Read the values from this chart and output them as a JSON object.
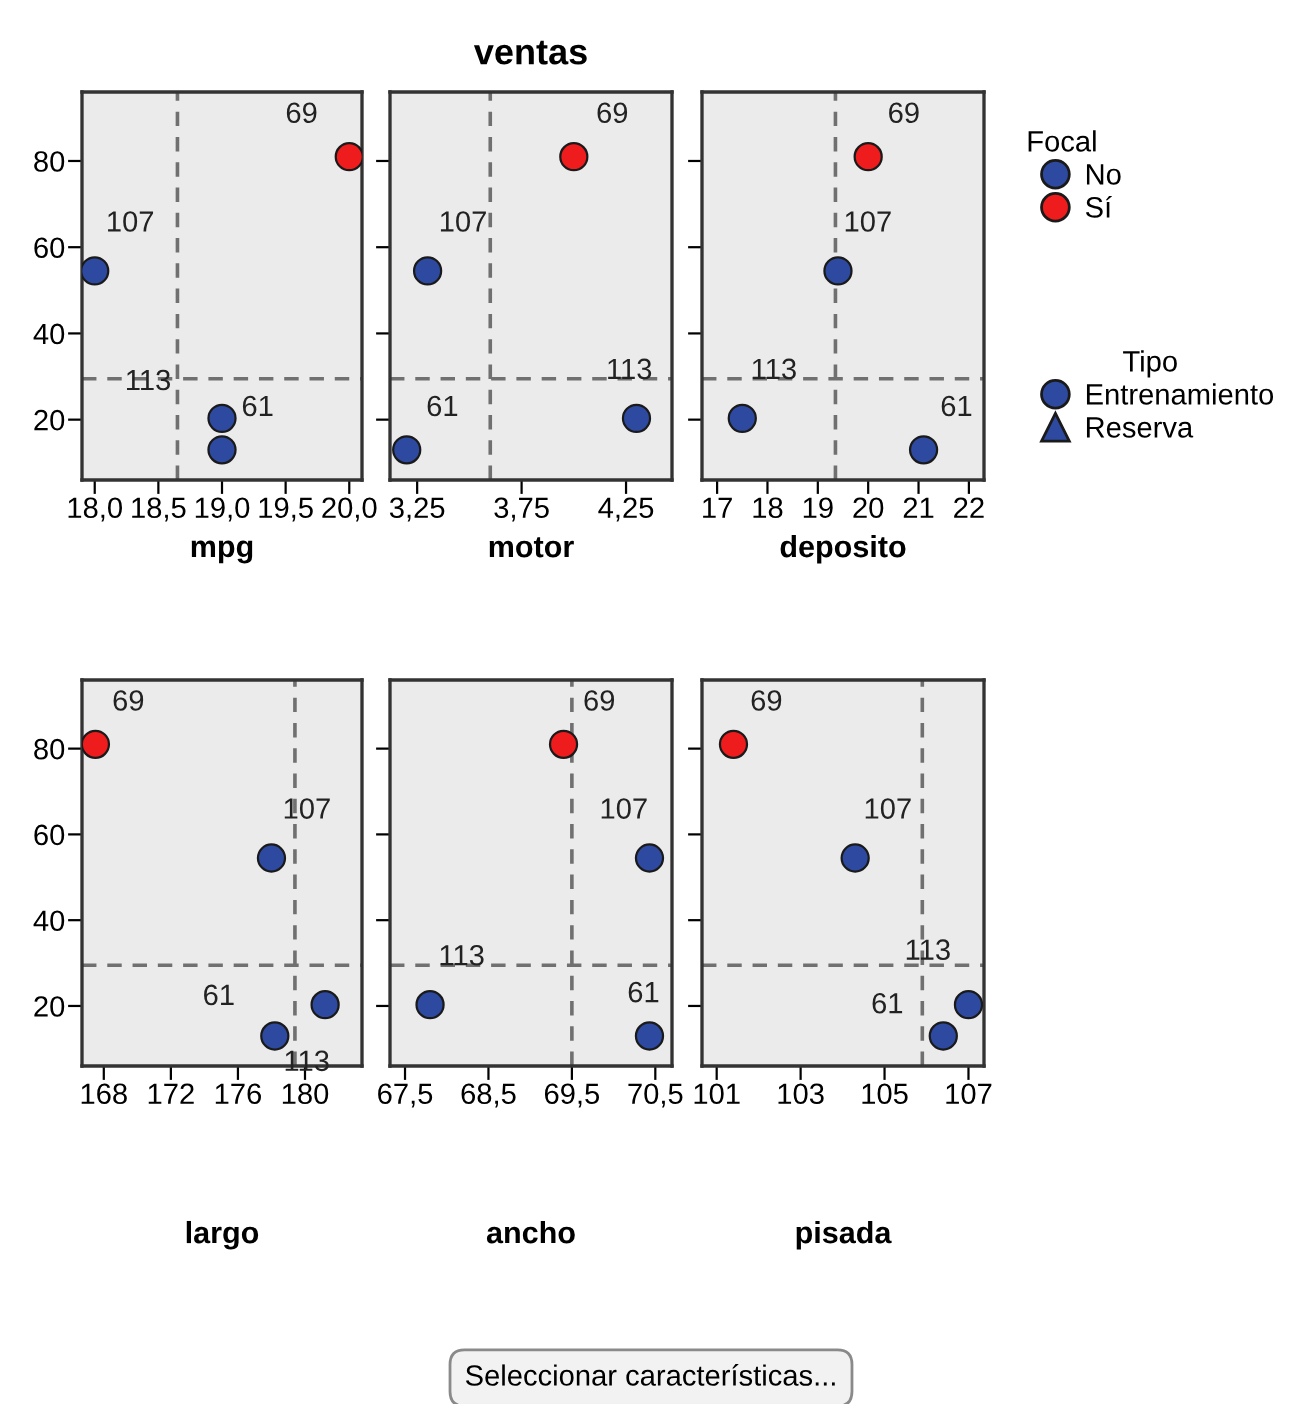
{
  "chart_data": [
    {
      "type": "scatter",
      "xlabel": "mpg",
      "marker": "circle",
      "legend": "right",
      "legend_title": "Focal",
      "xlim": [
        17.9,
        20.1
      ],
      "xticks": [
        {
          "value": 18.0,
          "label": "18,0"
        },
        {
          "value": 18.5,
          "label": "18,5"
        },
        {
          "value": 19.0,
          "label": "19,0"
        },
        {
          "value": 19.5,
          "label": "19,5"
        },
        {
          "value": 20.0,
          "label": "20,0"
        }
      ],
      "ylim": [
        6,
        96
      ],
      "yticks": [
        20,
        40,
        60,
        80
      ],
      "series": [
        {
          "name": "No",
          "color": "#2d4aa0",
          "x": [
            18.0,
            19.0,
            19.0
          ],
          "values": [
            54.5,
            20.3,
            13
          ]
        },
        {
          "name": "Sí",
          "color": "#ee1c1c",
          "x": [
            20.0
          ],
          "values": [
            81
          ]
        }
      ],
      "ref_lines": [
        {
          "axis": "x",
          "value": 18.65,
          "color": "#707070",
          "line_style": "dashed"
        },
        {
          "axis": "y",
          "value": 29.5,
          "color": "#707070",
          "line_style": "dashed"
        }
      ],
      "annotations": [
        {
          "text": "69",
          "x": 20.0,
          "y": 81
        },
        {
          "text": "107",
          "x": 18.0,
          "y": 54.5
        },
        {
          "text": "113",
          "x": 19.0,
          "y": 20.3
        },
        {
          "text": "61",
          "x": 19.0,
          "y": 13
        }
      ]
    },
    {
      "type": "scatter",
      "title": "ventas",
      "xlabel": "motor",
      "marker": "circle",
      "tick_labels": "x",
      "xlim": [
        3.12,
        4.47
      ],
      "xticks": [
        {
          "value": 3.25,
          "label": "3,25"
        },
        {
          "value": 3.75,
          "label": "3,75"
        },
        {
          "value": 4.25,
          "label": "4,25"
        }
      ],
      "ylim": [
        6,
        96
      ],
      "yticks": [
        20,
        40,
        60,
        80
      ],
      "series": [
        {
          "color": "#2d4aa0",
          "x": [
            3.3,
            4.3,
            3.2
          ],
          "values": [
            54.5,
            20.3,
            13
          ]
        },
        {
          "color": "#ee1c1c",
          "x": [
            4.0
          ],
          "values": [
            81
          ]
        }
      ],
      "ref_lines": [
        {
          "axis": "x",
          "value": 3.6,
          "color": "#707070",
          "line_style": "dashed"
        },
        {
          "axis": "y",
          "value": 29.5,
          "color": "#707070",
          "line_style": "dashed"
        }
      ],
      "annotations": [
        {
          "text": "69",
          "x": 4.0,
          "y": 81
        },
        {
          "text": "107",
          "x": 3.3,
          "y": 54.5
        },
        {
          "text": "113",
          "x": 4.3,
          "y": 20.3
        },
        {
          "text": "61",
          "x": 3.2,
          "y": 13
        }
      ]
    },
    {
      "type": "scatter",
      "xlabel": "deposito",
      "marker": "circle",
      "tick_labels": "x",
      "xlim": [
        16.7,
        22.3
      ],
      "xticks": [
        17,
        18,
        19,
        20,
        21,
        22
      ],
      "ylim": [
        6,
        96
      ],
      "yticks": [
        20,
        40,
        60,
        80
      ],
      "series": [
        {
          "color": "#2d4aa0",
          "x": [
            19.4,
            17.5,
            21.1
          ],
          "values": [
            54.5,
            20.3,
            13
          ]
        },
        {
          "color": "#ee1c1c",
          "x": [
            20.0
          ],
          "values": [
            81
          ]
        }
      ],
      "ref_lines": [
        {
          "axis": "x",
          "value": 19.35,
          "color": "#707070",
          "line_style": "dashed"
        },
        {
          "axis": "y",
          "value": 29.5,
          "color": "#707070",
          "line_style": "dashed"
        }
      ],
      "annotations": [
        {
          "text": "69",
          "x": 20.0,
          "y": 81
        },
        {
          "text": "107",
          "x": 19.4,
          "y": 54.5
        },
        {
          "text": "113",
          "x": 17.5,
          "y": 20.3
        },
        {
          "text": "61",
          "x": 21.1,
          "y": 13
        }
      ]
    },
    {
      "type": "scatter",
      "xlabel": "largo",
      "marker": "circle",
      "xlim": [
        166.7,
        183.4
      ],
      "xticks": [
        168,
        172,
        176,
        180
      ],
      "ylim": [
        6,
        96
      ],
      "yticks": [
        20,
        40,
        60,
        80
      ],
      "series": [
        {
          "color": "#2d4aa0",
          "x": [
            178.0,
            181.2,
            178.2
          ],
          "values": [
            54.5,
            20.3,
            13
          ]
        },
        {
          "color": "#ee1c1c",
          "x": [
            167.5
          ],
          "values": [
            81
          ]
        }
      ],
      "ref_lines": [
        {
          "axis": "x",
          "value": 179.4,
          "color": "#707070",
          "line_style": "dashed"
        },
        {
          "axis": "y",
          "value": 29.5,
          "color": "#707070",
          "line_style": "dashed"
        }
      ],
      "annotations": [
        {
          "text": "69",
          "x": 167.5,
          "y": 81
        },
        {
          "text": "107",
          "x": 178.0,
          "y": 54.5
        },
        {
          "text": "113",
          "x": 181.2,
          "y": 20.3
        },
        {
          "text": "61",
          "x": 178.2,
          "y": 13
        }
      ]
    },
    {
      "type": "scatter",
      "xlabel": "ancho",
      "marker": "circle",
      "tick_labels": "x",
      "xlim": [
        67.32,
        70.7
      ],
      "xticks": [
        {
          "value": 67.5,
          "label": "67,5"
        },
        {
          "value": 68.5,
          "label": "68,5"
        },
        {
          "value": 69.5,
          "label": "69,5"
        },
        {
          "value": 70.5,
          "label": "70,5"
        }
      ],
      "ylim": [
        6,
        96
      ],
      "yticks": [
        20,
        40,
        60,
        80
      ],
      "series": [
        {
          "color": "#2d4aa0",
          "x": [
            70.43,
            67.8,
            70.43
          ],
          "values": [
            54.5,
            20.3,
            13
          ]
        },
        {
          "color": "#ee1c1c",
          "x": [
            69.4
          ],
          "values": [
            81
          ]
        }
      ],
      "ref_lines": [
        {
          "axis": "x",
          "value": 69.5,
          "color": "#707070",
          "line_style": "dashed"
        },
        {
          "axis": "y",
          "value": 29.5,
          "color": "#707070",
          "line_style": "dashed"
        }
      ],
      "annotations": [
        {
          "text": "69",
          "x": 69.4,
          "y": 81
        },
        {
          "text": "107",
          "x": 70.43,
          "y": 54.5
        },
        {
          "text": "113",
          "x": 67.8,
          "y": 20.3
        },
        {
          "text": "61",
          "x": 70.43,
          "y": 13
        }
      ]
    },
    {
      "type": "scatter",
      "xlabel": "pisada",
      "marker": "circle",
      "tick_labels": "x",
      "xlim": [
        100.65,
        107.37
      ],
      "xticks": [
        101,
        103,
        105,
        107
      ],
      "ylim": [
        6,
        96
      ],
      "yticks": [
        20,
        40,
        60,
        80
      ],
      "series": [
        {
          "color": "#2d4aa0",
          "x": [
            104.3,
            107.0,
            106.4
          ],
          "values": [
            54.5,
            20.3,
            13
          ]
        },
        {
          "color": "#ee1c1c",
          "x": [
            101.4
          ],
          "values": [
            81
          ]
        }
      ],
      "ref_lines": [
        {
          "axis": "x",
          "value": 105.9,
          "color": "#707070",
          "line_style": "dashed"
        },
        {
          "axis": "y",
          "value": 29.5,
          "color": "#707070",
          "line_style": "dashed"
        }
      ],
      "annotations": [
        {
          "text": "69",
          "x": 101.4,
          "y": 81
        },
        {
          "text": "107",
          "x": 104.3,
          "y": 54.5
        },
        {
          "text": "113",
          "x": 107.0,
          "y": 20.3
        },
        {
          "text": "61",
          "x": 106.4,
          "y": 13
        }
      ]
    },
    {
      "type": "other",
      "legend_title": "Tipo",
      "series": [
        {
          "name": "Entrenamiento",
          "marker": "circle"
        },
        {
          "name": "Reserva",
          "marker": "triangle"
        }
      ],
      "annotations": [
        "Seleccionar características..."
      ]
    }
  ]
}
